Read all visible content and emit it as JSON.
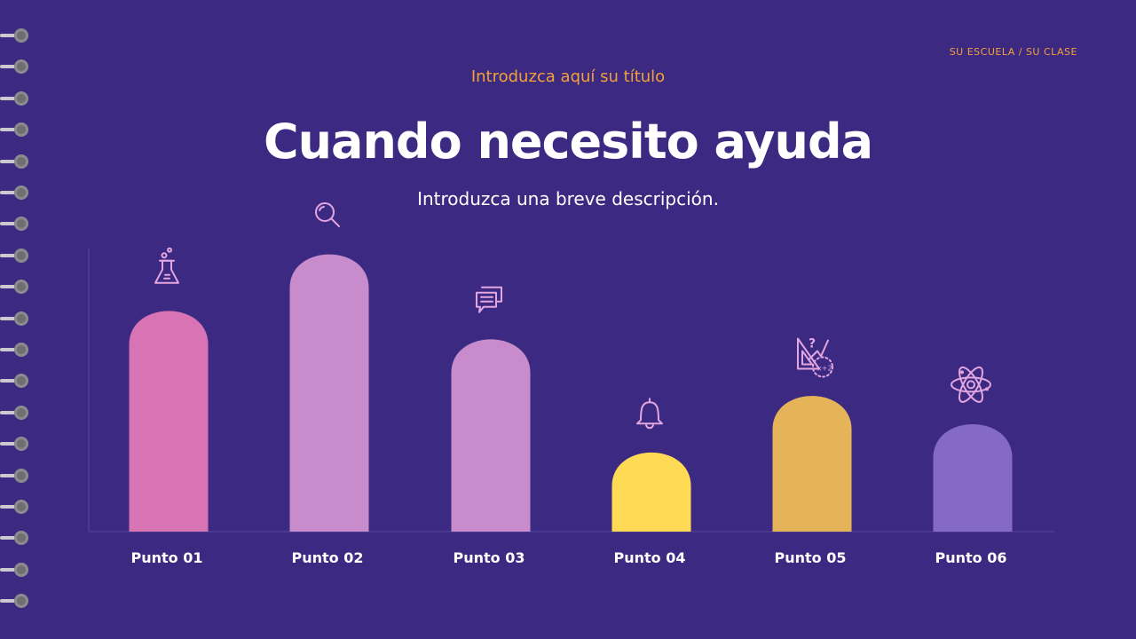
{
  "header": {
    "school_label": "SU ESCUELA / SU CLASE",
    "subtitle": "Introduzca aquí su título",
    "title": "Cuando necesito ayuda",
    "description": "Introduzca una breve descripción."
  },
  "chart_data": {
    "type": "bar",
    "categories": [
      "Punto 01",
      "Punto 02",
      "Punto 03",
      "Punto 04",
      "Punto 05",
      "Punto 06"
    ],
    "values": [
      80,
      100,
      70,
      30,
      50,
      40
    ],
    "ylim": [
      0,
      100
    ],
    "grid": false,
    "colors": [
      "#d874b4",
      "#c88ccc",
      "#c88ccc",
      "#ffda55",
      "#e6b458",
      "#8469c6"
    ],
    "icons": [
      "flask-icon",
      "magnifier-icon",
      "chat-bubbles-icon",
      "bell-icon",
      "geometry-icon",
      "atom-icon"
    ],
    "icon_color": "#e3a6e0",
    "icon_texts": {
      "geometry_formula": "x+2",
      "geometry_mark": "?"
    }
  }
}
